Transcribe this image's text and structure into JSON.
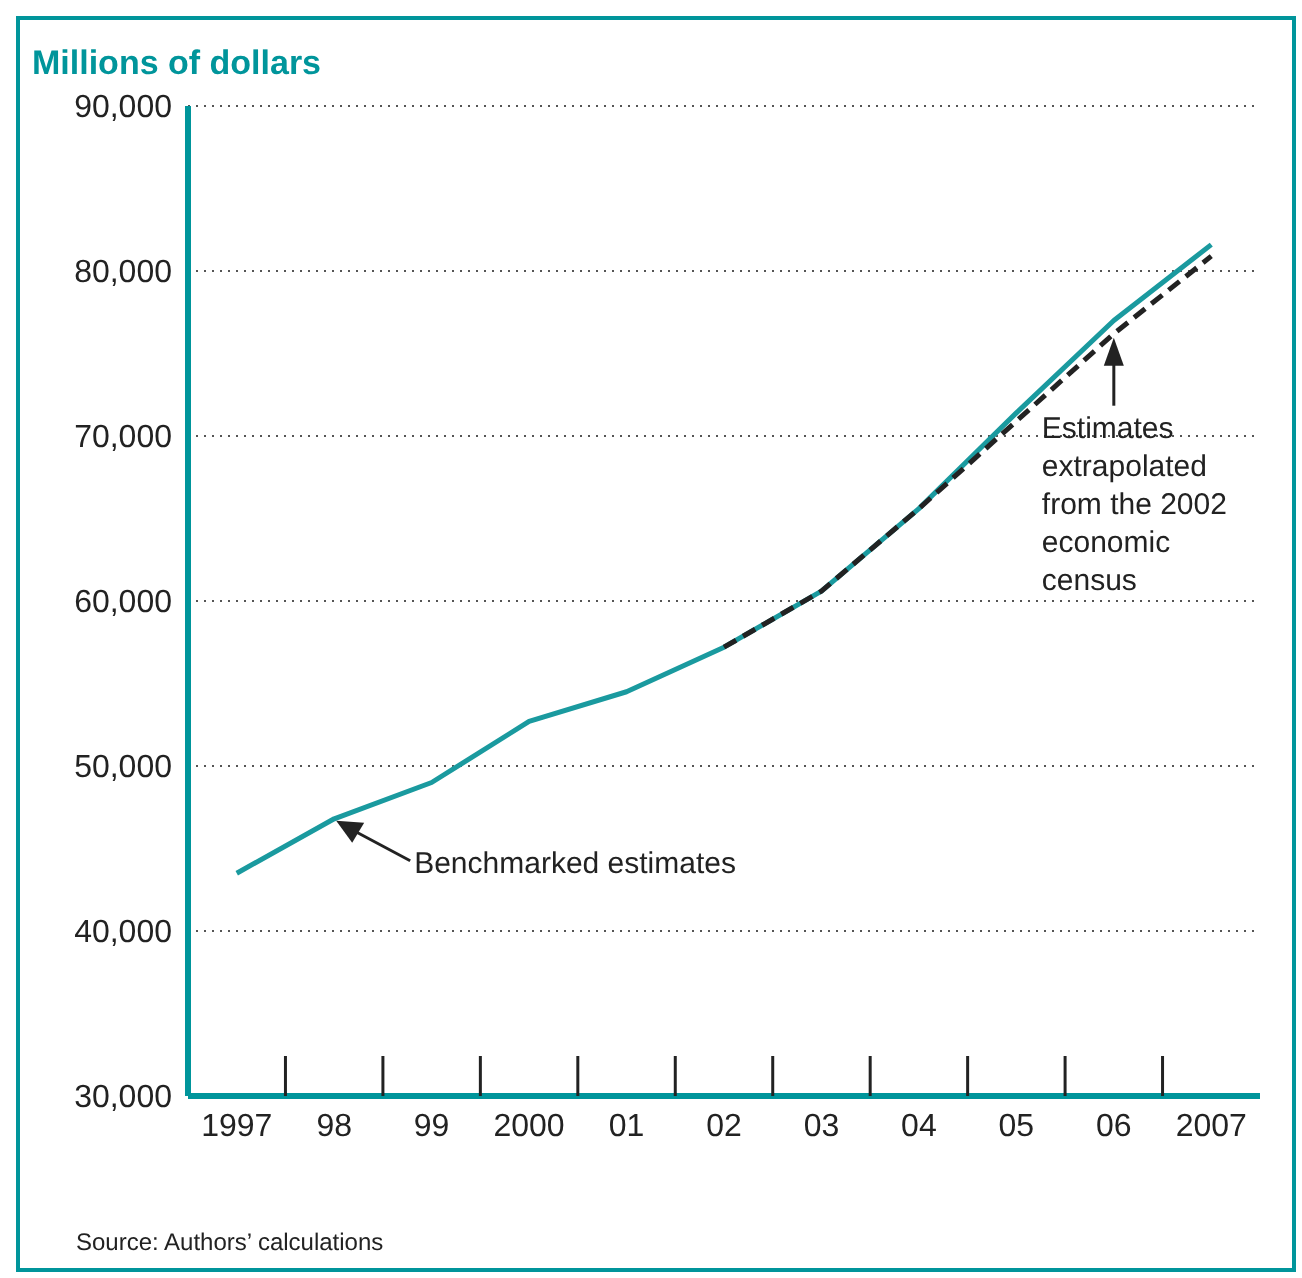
{
  "chart_data": {
    "type": "line",
    "ylabel": "Millions of dollars",
    "categories": [
      "1997",
      "98",
      "99",
      "2000",
      "01",
      "02",
      "03",
      "04",
      "05",
      "06",
      "2007"
    ],
    "series": [
      {
        "color": "#1a9a9f",
        "line_style": "solid",
        "values": [
          43500,
          46800,
          49000,
          52700,
          54500,
          57200,
          60600,
          65600,
          71400,
          77000,
          81600
        ]
      },
      {
        "color": "#222222",
        "line_style": "dashed",
        "values": [
          null,
          null,
          null,
          null,
          null,
          57200,
          60600,
          65600,
          70900,
          76200,
          80900
        ]
      }
    ],
    "ylim": [
      30000,
      90000
    ],
    "yticks": [
      {
        "value": 30000,
        "label": "30,000"
      },
      {
        "value": 40000,
        "label": "40,000"
      },
      {
        "value": 50000,
        "label": "50,000"
      },
      {
        "value": 60000,
        "label": "60,000"
      },
      {
        "value": 70000,
        "label": "70,000"
      },
      {
        "value": 80000,
        "label": "80,000"
      },
      {
        "value": 90000,
        "label": "90,000"
      }
    ],
    "grid": "y",
    "legend": false,
    "marker": "none",
    "annotations": [
      {
        "text": "Benchmarked estimates",
        "x": "98",
        "y": 46800
      },
      {
        "text": "Estimates extrapolated from the 2002 economic census",
        "x": "06",
        "y": 76200
      },
      "Source: Authors’ calculations"
    ]
  }
}
